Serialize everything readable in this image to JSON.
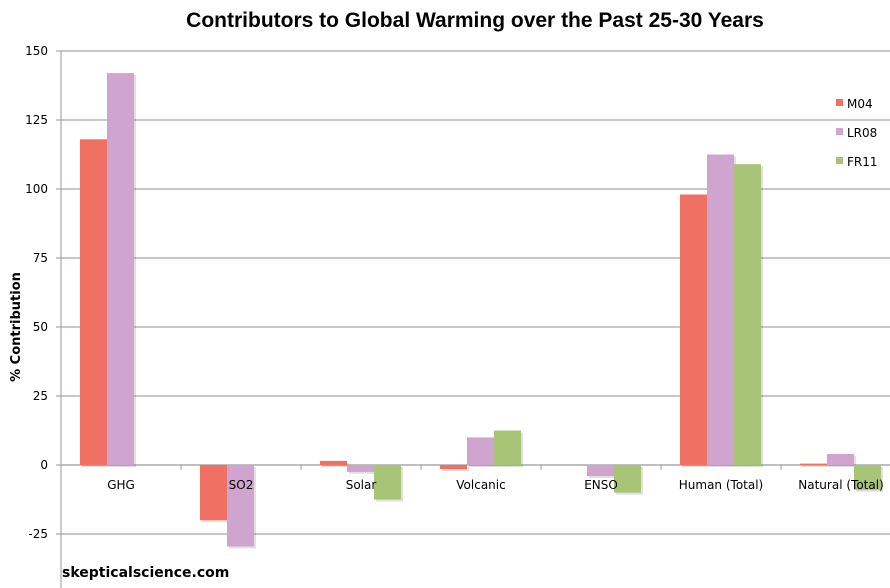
{
  "chart_data": {
    "type": "bar",
    "title": "Contributors to Global Warming over the Past 25-30 Years",
    "xlabel": "",
    "ylabel": "% Contribution",
    "ylim": [
      -25,
      150
    ],
    "yticks": [
      150,
      125,
      100,
      75,
      50,
      25,
      0,
      -25
    ],
    "ytick_labels": [
      "150",
      "125",
      "100",
      "75",
      "50",
      "25",
      "0",
      "-25"
    ],
    "grid": true,
    "legend_position": "top-right",
    "categories": [
      "GHG",
      "SO2",
      "Solar",
      "Volcanic",
      "ENSO",
      "Human (Total)",
      "Natural (Total)"
    ],
    "series": [
      {
        "name": "M04",
        "color": "#f07163",
        "values": [
          118,
          -20,
          1.5,
          -1.5,
          null,
          98,
          0.5
        ]
      },
      {
        "name": "LR08",
        "color": "#cfa5cf",
        "values": [
          142,
          -29.5,
          -2.5,
          10,
          -4,
          112.5,
          4
        ]
      },
      {
        "name": "FR11",
        "color": "#a8c477",
        "values": [
          null,
          null,
          -12.5,
          12.5,
          -10,
          109,
          -9
        ]
      }
    ],
    "credit": "skepticalscience.com"
  }
}
